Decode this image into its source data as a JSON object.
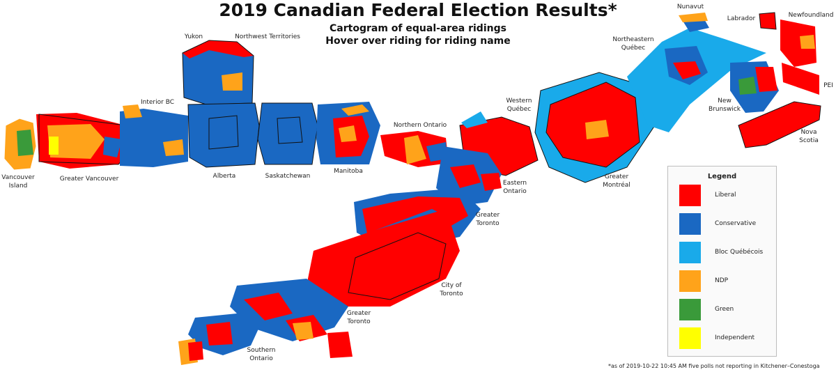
{
  "header": {
    "title": "2019 Canadian Federal Election Results*",
    "subtitle_line1": "Cartogram of equal-area ridings",
    "subtitle_line2": "Hover over riding for riding name"
  },
  "regions": {
    "nunavut": "Nunavut",
    "labrador": "Labrador",
    "newfoundland": "Newfoundland",
    "yukon": "Yukon",
    "nwt": "Northwest Territories",
    "ne_quebec_1": "Northeastern",
    "ne_quebec_2": "Québec",
    "pei": "PEI",
    "new_brunswick_1": "New",
    "new_brunswick_2": "Brunswick",
    "interior_bc": "Interior BC",
    "western_quebec_1": "Western",
    "western_quebec_2": "Québec",
    "northern_ontario": "Northern Ontario",
    "nova_scotia_1": "Nova",
    "nova_scotia_2": "Scotia",
    "vancouver_island_1": "Vancouver",
    "vancouver_island_2": "Island",
    "greater_vancouver": "Greater Vancouver",
    "alberta": "Alberta",
    "saskatchewan": "Saskatchewan",
    "manitoba": "Manitoba",
    "greater_montreal_1": "Greater",
    "greater_montreal_2": "Montréal",
    "eastern_ontario_1": "Eastern",
    "eastern_ontario_2": "Ontario",
    "gta_north_1": "Greater",
    "gta_north_2": "Toronto",
    "city_of_toronto_1": "City of",
    "city_of_toronto_2": "Toronto",
    "gta_south_1": "Greater",
    "gta_south_2": "Toronto",
    "southern_ontario_1": "Southern",
    "southern_ontario_2": "Ontario"
  },
  "legend": {
    "title": "Legend",
    "items": [
      {
        "label": "Liberal",
        "color": "#ff0000"
      },
      {
        "label": "Conservative",
        "color": "#1a68c2"
      },
      {
        "label": "Bloc Québécois",
        "color": "#19aaea"
      },
      {
        "label": "NDP",
        "color": "#ffa31a"
      },
      {
        "label": "Green",
        "color": "#3a9a3a"
      },
      {
        "label": "Independent",
        "color": "#ffff00"
      }
    ]
  },
  "footnote": "*as of 2019-10-22 10:45 AM five polls not reporting in Kitchener–Conestoga"
}
